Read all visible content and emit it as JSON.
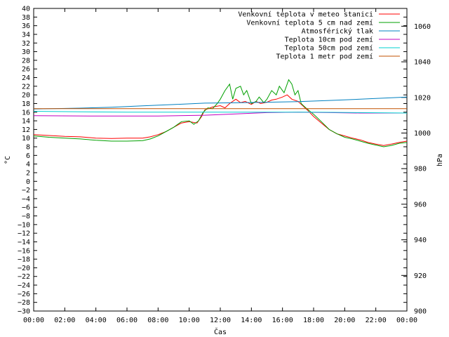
{
  "chart_data": {
    "type": "line",
    "xlabel": "Čas",
    "ylabel": "°C",
    "y2label": "hPa",
    "x_ticks": [
      "00:00",
      "02:00",
      "04:00",
      "06:00",
      "08:00",
      "10:00",
      "12:00",
      "14:00",
      "16:00",
      "18:00",
      "20:00",
      "22:00",
      "00:00"
    ],
    "x_range_hours": [
      0,
      24
    ],
    "ylim": [
      -30,
      40
    ],
    "y_ticks": [
      40,
      38,
      36,
      34,
      32,
      30,
      28,
      26,
      24,
      22,
      20,
      18,
      16,
      14,
      12,
      10,
      8,
      6,
      4,
      2,
      0,
      -2,
      -4,
      -6,
      -8,
      -10,
      -12,
      -14,
      -16,
      -18,
      -20,
      -22,
      -24,
      -26,
      -28,
      -30
    ],
    "y2lim": [
      900,
      1070
    ],
    "y2_ticks": [
      1060,
      1040,
      1020,
      1000,
      980,
      960,
      940,
      920,
      900
    ],
    "grid": false,
    "legend_position": "top-right",
    "series": [
      {
        "name": "Venkovní teplota v meteo stanici",
        "color": "#ff0000",
        "axis": "left",
        "points": [
          [
            0,
            10.8
          ],
          [
            1,
            10.6
          ],
          [
            2,
            10.4
          ],
          [
            3,
            10.3
          ],
          [
            4,
            10.0
          ],
          [
            5,
            9.9
          ],
          [
            6,
            10.0
          ],
          [
            7,
            10.0
          ],
          [
            7.5,
            10.3
          ],
          [
            8,
            10.8
          ],
          [
            8.5,
            11.5
          ],
          [
            9,
            12.5
          ],
          [
            9.5,
            13.5
          ],
          [
            10,
            13.8
          ],
          [
            10.5,
            13.5
          ],
          [
            10.8,
            15.0
          ],
          [
            11,
            16.5
          ],
          [
            11.5,
            17.2
          ],
          [
            12,
            17.5
          ],
          [
            12.3,
            17.0
          ],
          [
            12.6,
            18.0
          ],
          [
            13,
            19.0
          ],
          [
            13.3,
            18.2
          ],
          [
            13.6,
            18.5
          ],
          [
            14,
            17.8
          ],
          [
            14.3,
            18.5
          ],
          [
            14.6,
            18.0
          ],
          [
            15,
            18.3
          ],
          [
            15.3,
            18.8
          ],
          [
            15.6,
            19.0
          ],
          [
            16,
            19.5
          ],
          [
            16.3,
            20.0
          ],
          [
            16.6,
            19.0
          ],
          [
            17,
            18.5
          ],
          [
            17.3,
            17.5
          ],
          [
            17.6,
            16.5
          ],
          [
            18,
            15.0
          ],
          [
            18.5,
            13.5
          ],
          [
            19,
            12.0
          ],
          [
            19.5,
            11.0
          ],
          [
            20,
            10.5
          ],
          [
            20.5,
            10.0
          ],
          [
            21,
            9.6
          ],
          [
            21.5,
            9.0
          ],
          [
            22,
            8.6
          ],
          [
            22.5,
            8.3
          ],
          [
            23,
            8.6
          ],
          [
            23.5,
            9.0
          ],
          [
            24,
            9.3
          ]
        ]
      },
      {
        "name": "Venkovní teplota 5 cm nad zemí",
        "color": "#00a000",
        "axis": "left",
        "points": [
          [
            0,
            10.5
          ],
          [
            1,
            10.2
          ],
          [
            2,
            10.0
          ],
          [
            3,
            9.8
          ],
          [
            4,
            9.5
          ],
          [
            5,
            9.3
          ],
          [
            6,
            9.3
          ],
          [
            7,
            9.4
          ],
          [
            7.5,
            9.8
          ],
          [
            8,
            10.5
          ],
          [
            8.5,
            11.5
          ],
          [
            9,
            12.5
          ],
          [
            9.5,
            13.8
          ],
          [
            10,
            14.0
          ],
          [
            10.3,
            13.2
          ],
          [
            10.6,
            14.0
          ],
          [
            10.9,
            16.0
          ],
          [
            11.2,
            17.0
          ],
          [
            11.5,
            16.8
          ],
          [
            11.8,
            18.0
          ],
          [
            12,
            19.0
          ],
          [
            12.3,
            21.0
          ],
          [
            12.6,
            22.5
          ],
          [
            12.8,
            19.0
          ],
          [
            13,
            21.5
          ],
          [
            13.3,
            22.0
          ],
          [
            13.5,
            20.0
          ],
          [
            13.7,
            21.0
          ],
          [
            14,
            18.0
          ],
          [
            14.3,
            18.5
          ],
          [
            14.5,
            19.5
          ],
          [
            14.8,
            18.2
          ],
          [
            15,
            19.0
          ],
          [
            15.3,
            21.0
          ],
          [
            15.6,
            20.0
          ],
          [
            15.8,
            22.0
          ],
          [
            16.1,
            20.5
          ],
          [
            16.4,
            23.5
          ],
          [
            16.6,
            22.5
          ],
          [
            16.8,
            20.0
          ],
          [
            17,
            21.0
          ],
          [
            17.2,
            18.0
          ],
          [
            17.5,
            17.0
          ],
          [
            18,
            15.5
          ],
          [
            18.5,
            13.8
          ],
          [
            19,
            12.0
          ],
          [
            19.5,
            11.0
          ],
          [
            20,
            10.2
          ],
          [
            20.5,
            9.8
          ],
          [
            21,
            9.3
          ],
          [
            21.5,
            8.8
          ],
          [
            22,
            8.4
          ],
          [
            22.5,
            8.0
          ],
          [
            23,
            8.3
          ],
          [
            23.5,
            8.8
          ],
          [
            24,
            9.0
          ]
        ]
      },
      {
        "name": "Atmosférický tlak",
        "color": "#0080c0",
        "axis": "right",
        "points": [
          [
            0,
            1013.5
          ],
          [
            3,
            1014.0
          ],
          [
            5,
            1014.5
          ],
          [
            7,
            1015.3
          ],
          [
            9,
            1016.0
          ],
          [
            11,
            1016.8
          ],
          [
            13,
            1017.0
          ],
          [
            15,
            1017.3
          ],
          [
            17,
            1017.6
          ],
          [
            19,
            1018.3
          ],
          [
            21,
            1019.0
          ],
          [
            23,
            1019.8
          ],
          [
            24,
            1020.2
          ]
        ]
      },
      {
        "name": "Teplota 10cm pod zemí",
        "color": "#c000c0",
        "axis": "left",
        "points": [
          [
            0,
            15.2
          ],
          [
            4,
            15.1
          ],
          [
            8,
            15.1
          ],
          [
            11,
            15.3
          ],
          [
            13,
            15.6
          ],
          [
            15,
            15.9
          ],
          [
            17,
            16.0
          ],
          [
            19,
            15.9
          ],
          [
            21,
            15.8
          ],
          [
            24,
            15.8
          ]
        ]
      },
      {
        "name": "Teplota 50cm pod zemí",
        "color": "#00d0d0",
        "axis": "left",
        "points": [
          [
            0,
            16.2
          ],
          [
            3,
            16.1
          ],
          [
            6,
            16.0
          ],
          [
            9,
            16.0
          ],
          [
            12,
            16.0
          ],
          [
            15,
            16.0
          ],
          [
            18,
            16.0
          ],
          [
            21,
            15.9
          ],
          [
            24,
            15.8
          ]
        ]
      },
      {
        "name": "Teplota 1 metr pod zemí",
        "color": "#c05000",
        "axis": "left",
        "points": [
          [
            0,
            16.8
          ],
          [
            6,
            16.8
          ],
          [
            12,
            16.8
          ],
          [
            18,
            16.8
          ],
          [
            24,
            16.8
          ]
        ]
      }
    ]
  }
}
